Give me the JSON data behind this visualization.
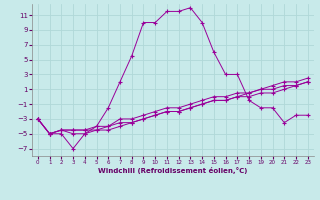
{
  "xlabel": "Windchill (Refroidissement éolien,°C)",
  "bg_color": "#c8eaea",
  "grid_color": "#b0d8d8",
  "line_color": "#990099",
  "xlim": [
    -0.5,
    23.5
  ],
  "ylim": [
    -8,
    12.5
  ],
  "yticks": [
    -7,
    -5,
    -3,
    -1,
    1,
    3,
    5,
    7,
    9,
    11
  ],
  "xticks": [
    0,
    1,
    2,
    3,
    4,
    5,
    6,
    7,
    8,
    9,
    10,
    11,
    12,
    13,
    14,
    15,
    16,
    17,
    18,
    19,
    20,
    21,
    22,
    23
  ],
  "series1_x": [
    0,
    1,
    2,
    3,
    4,
    5,
    6,
    7,
    8,
    9,
    10,
    11,
    12,
    13,
    14,
    15,
    16,
    17,
    18,
    19,
    20,
    21,
    22,
    23
  ],
  "series1_y": [
    -3,
    -5,
    -5,
    -7,
    -5,
    -4,
    -1.5,
    2,
    5.5,
    10,
    10,
    11.5,
    11.5,
    12,
    10,
    6,
    3,
    3,
    -0.5,
    -1.5,
    -1.5,
    -3.5,
    -2.5,
    -2.5
  ],
  "series2_x": [
    0,
    1,
    2,
    3,
    4,
    5,
    6,
    7,
    8,
    9,
    10,
    11,
    12,
    13,
    14,
    15,
    16,
    17,
    18,
    19,
    20,
    21,
    22,
    23
  ],
  "series2_y": [
    -3,
    -5,
    -4.5,
    -4.5,
    -4.5,
    -4,
    -4,
    -3,
    -3,
    -2.5,
    -2,
    -1.5,
    -1.5,
    -1,
    -0.5,
    0,
    0,
    0.5,
    0.5,
    1,
    1.5,
    2,
    2,
    2.5
  ],
  "series3_x": [
    0,
    1,
    2,
    3,
    4,
    5,
    6,
    7,
    8,
    9,
    10,
    11,
    12,
    13,
    14,
    15,
    16,
    17,
    18,
    19,
    20,
    21,
    22,
    23
  ],
  "series3_y": [
    -3,
    -5,
    -4.5,
    -4.5,
    -4.5,
    -4.5,
    -4,
    -3.5,
    -3.5,
    -3,
    -2.5,
    -2,
    -2,
    -1.5,
    -1,
    -0.5,
    -0.5,
    0,
    0.5,
    1,
    1,
    1.5,
    1.5,
    2
  ],
  "series4_x": [
    0,
    1,
    2,
    3,
    4,
    5,
    6,
    7,
    8,
    9,
    10,
    11,
    12,
    13,
    14,
    15,
    16,
    17,
    18,
    19,
    20,
    21,
    22,
    23
  ],
  "series4_y": [
    -3,
    -5,
    -4.5,
    -5,
    -5,
    -4.5,
    -4.5,
    -4,
    -3.5,
    -3,
    -2.5,
    -2,
    -2,
    -1.5,
    -1,
    -0.5,
    -0.5,
    0,
    0,
    0.5,
    0.5,
    1,
    1.5,
    2
  ]
}
